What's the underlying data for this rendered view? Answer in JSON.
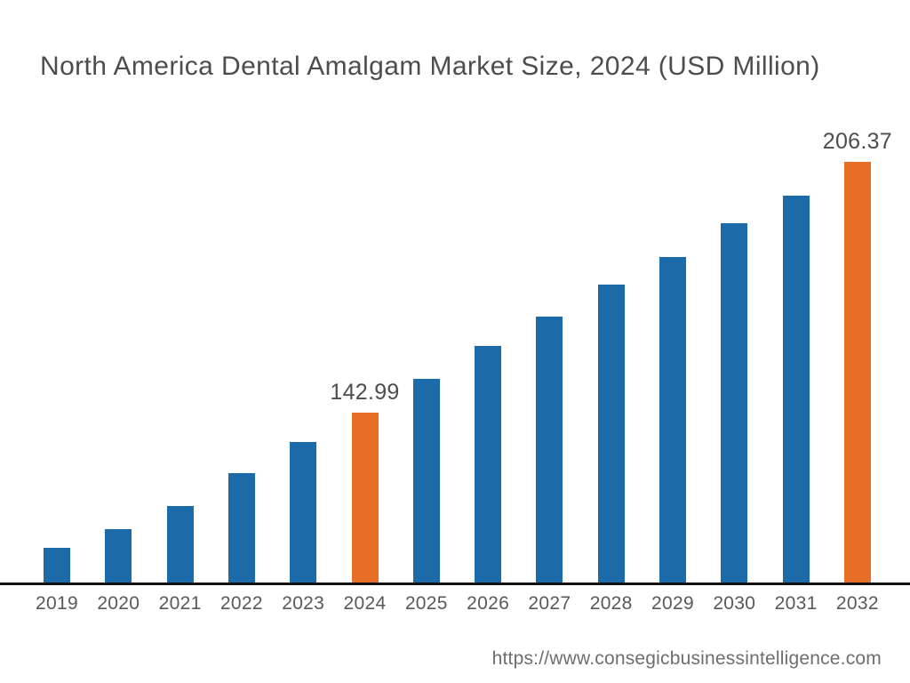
{
  "title": "North America Dental Amalgam Market Size, 2024 (USD Million)",
  "source_url": "https://www.consegicbusinessintelligence.com",
  "colors": {
    "bar_default": "#1C6BA8",
    "bar_highlight": "#E66E26",
    "title_text": "#4D4D4D",
    "tick_text": "#595959",
    "value_label_text": "#4D4D4D",
    "url_text": "#6E6E6E",
    "axis_line": "#111111",
    "background": "#FFFFFF"
  },
  "chart_data": {
    "type": "bar",
    "title": "North America Dental Amalgam Market Size, 2024 (USD Million)",
    "categories": [
      "2019",
      "2020",
      "2021",
      "2022",
      "2023",
      "2024",
      "2025",
      "2026",
      "2027",
      "2028",
      "2029",
      "2030",
      "2031",
      "2032"
    ],
    "values": [
      108.9,
      113.6,
      119.5,
      127.8,
      135.6,
      142.99,
      151.5,
      159.8,
      167.4,
      175.3,
      182.4,
      190.9,
      197.9,
      206.37
    ],
    "labeled_points": {
      "2024": "142.99",
      "2032": "206.37"
    },
    "highlighted_categories": [
      "2024",
      "2032"
    ],
    "xlabel": "",
    "ylabel": "",
    "ylim": [
      99.5,
      218
    ],
    "grid": false,
    "legend": false
  }
}
